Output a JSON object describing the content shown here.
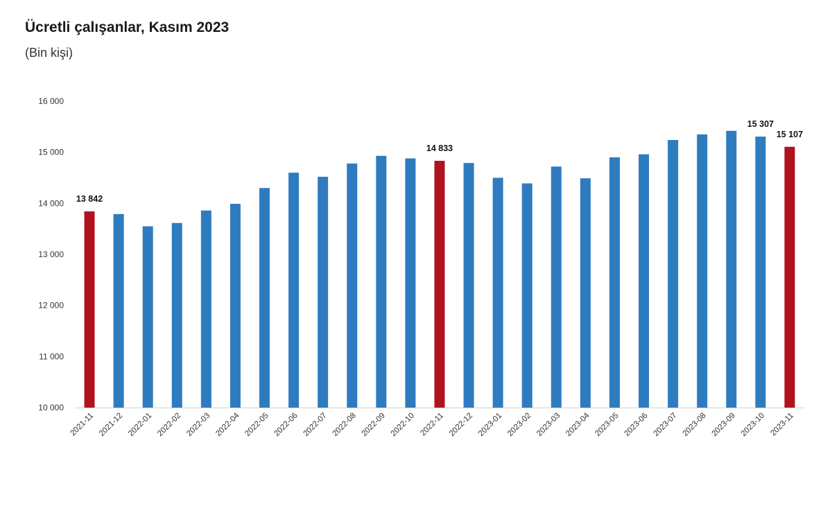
{
  "header": {
    "title": "Ücretli çalışanlar, Kasım 2023",
    "subtitle": "(Bin kişi)"
  },
  "chart_data": {
    "type": "bar",
    "title": "Ücretli çalışanlar, Kasım 2023",
    "subtitle": "(Bin kişi)",
    "xlabel": "",
    "ylabel": "",
    "ylim": [
      10000,
      16000
    ],
    "yticks": [
      10000,
      11000,
      12000,
      13000,
      14000,
      15000,
      16000
    ],
    "ytick_labels": [
      "10 000",
      "11 000",
      "12 000",
      "13 000",
      "14 000",
      "15 000",
      "16 000"
    ],
    "grid": false,
    "categories": [
      "2021-11",
      "2021-12",
      "2022-01",
      "2022-02",
      "2022-03",
      "2022-04",
      "2022-05",
      "2022-06",
      "2022-07",
      "2022-08",
      "2022-09",
      "2022-10",
      "2022-11",
      "2022-12",
      "2023-01",
      "2023-02",
      "2023-03",
      "2023-04",
      "2023-05",
      "2023-06",
      "2023-07",
      "2023-08",
      "2023-09",
      "2023-10",
      "2023-11"
    ],
    "values": [
      13842,
      13790,
      13550,
      13615,
      13860,
      13990,
      14300,
      14600,
      14520,
      14780,
      14930,
      14880,
      14833,
      14790,
      14500,
      14390,
      14720,
      14490,
      14900,
      14960,
      15240,
      15350,
      15420,
      15307,
      15107
    ],
    "highlight_indices": [
      0,
      12,
      24
    ],
    "data_labels": [
      {
        "index": 0,
        "text": "13 842"
      },
      {
        "index": 12,
        "text": "14 833"
      },
      {
        "index": 23,
        "text": "15 307"
      },
      {
        "index": 24,
        "text": "15 107"
      }
    ],
    "colors": {
      "bar": "#2e7cbf",
      "highlight": "#b0131d",
      "axis": "#d0d0d0"
    }
  }
}
